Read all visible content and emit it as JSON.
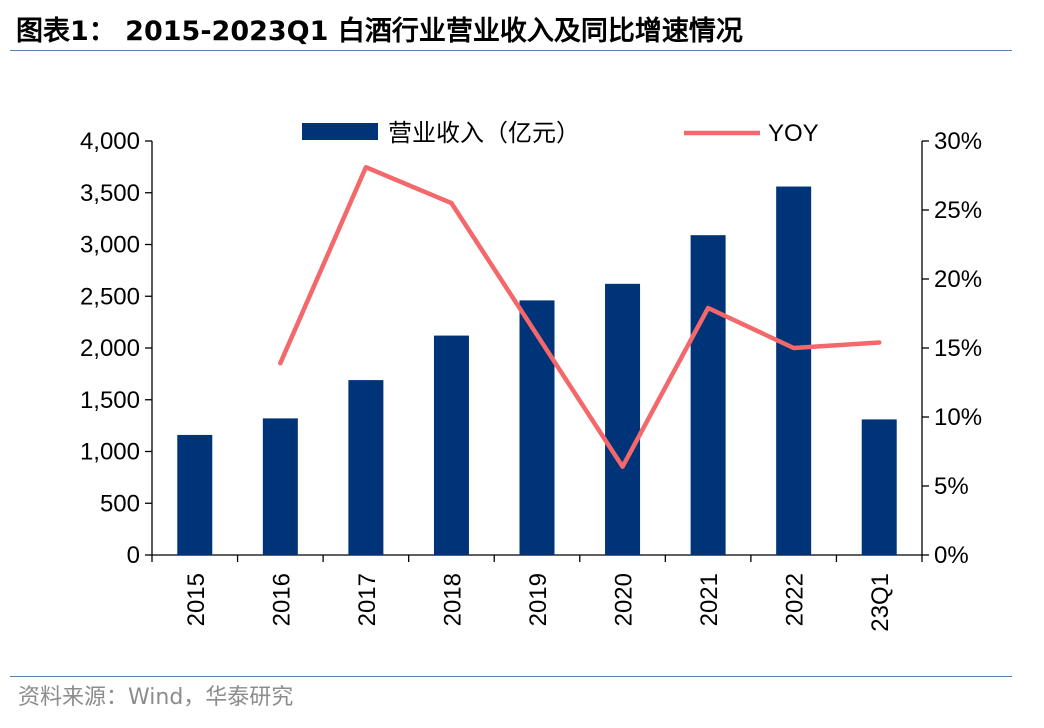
{
  "title": "图表1： 2015-2023Q1 白酒行业营业收入及同比增速情况",
  "source": "资料来源：Wind，华泰研究",
  "colors": {
    "bar": "#003478",
    "line": "#f4676a",
    "rule": "#5b7fa6",
    "source": "#8c8c8c"
  },
  "chart_data": {
    "type": "bar+line",
    "title": "2015-2023Q1 白酒行业营业收入及同比增速情况",
    "categories": [
      "2015",
      "2016",
      "2017",
      "2018",
      "2019",
      "2020",
      "2021",
      "2022",
      "23Q1"
    ],
    "series": [
      {
        "name": "营业收入（亿元）",
        "type": "bar",
        "axis": "left",
        "values": [
          1160,
          1320,
          1690,
          2120,
          2460,
          2620,
          3090,
          3560,
          1310
        ]
      },
      {
        "name": "YOY",
        "type": "line",
        "axis": "right",
        "values": [
          null,
          0.139,
          0.281,
          0.255,
          null,
          0.064,
          0.179,
          0.15,
          0.154
        ]
      }
    ],
    "left_axis": {
      "min": 0,
      "max": 4000,
      "step": 500,
      "ticks": [
        "0",
        "500",
        "1,000",
        "1,500",
        "2,000",
        "2,500",
        "3,000",
        "3,500",
        "4,000"
      ]
    },
    "right_axis": {
      "min": 0,
      "max": 0.3,
      "step": 0.05,
      "ticks": [
        "0%",
        "5%",
        "10%",
        "15%",
        "20%",
        "25%",
        "30%"
      ]
    },
    "legend": {
      "position": "top",
      "entries": [
        "营业收入（亿元）",
        "YOY"
      ]
    },
    "grid": false
  }
}
